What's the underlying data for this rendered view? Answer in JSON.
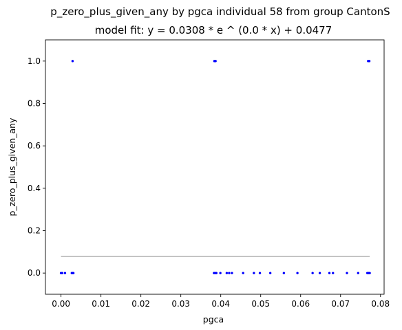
{
  "chart_data": {
    "type": "scatter",
    "title": "p_zero_plus_given_any by pgca individual 58 from group CantonS",
    "subtitle": "model fit: y = 0.0308 * e ^ (0.0 * x) + 0.0477",
    "xlabel": "pgca",
    "ylabel": "p_zero_plus_given_any",
    "xlim": [
      -0.0039,
      0.0809
    ],
    "ylim": [
      -0.1,
      1.1
    ],
    "x_ticks": [
      0.0,
      0.01,
      0.02,
      0.03,
      0.04,
      0.05,
      0.06,
      0.07,
      0.08
    ],
    "x_tick_labels": [
      "0.00",
      "0.01",
      "0.02",
      "0.03",
      "0.04",
      "0.05",
      "0.06",
      "0.07",
      "0.08"
    ],
    "y_ticks": [
      0.0,
      0.2,
      0.4,
      0.6,
      0.8,
      1.0
    ],
    "y_tick_labels": [
      "0.0",
      "0.2",
      "0.4",
      "0.6",
      "0.8",
      "1.0"
    ],
    "grid": false,
    "series": [
      {
        "marker_color": "#0000ff",
        "points": [
          {
            "x": 0.0,
            "y": 0.0
          },
          {
            "x": 0.0003,
            "y": 0.0
          },
          {
            "x": 0.001,
            "y": 0.0
          },
          {
            "x": 0.0027,
            "y": 0.0
          },
          {
            "x": 0.0029,
            "y": 0.0
          },
          {
            "x": 0.0031,
            "y": 0.0
          },
          {
            "x": 0.0029,
            "y": 1.0
          },
          {
            "x": 0.0383,
            "y": 0.0
          },
          {
            "x": 0.0386,
            "y": 0.0
          },
          {
            "x": 0.0389,
            "y": 0.0
          },
          {
            "x": 0.0399,
            "y": 0.0
          },
          {
            "x": 0.0415,
            "y": 0.0
          },
          {
            "x": 0.0421,
            "y": 0.0
          },
          {
            "x": 0.0428,
            "y": 0.0
          },
          {
            "x": 0.0456,
            "y": 0.0
          },
          {
            "x": 0.0483,
            "y": 0.0
          },
          {
            "x": 0.0498,
            "y": 0.0
          },
          {
            "x": 0.0524,
            "y": 0.0
          },
          {
            "x": 0.0558,
            "y": 0.0
          },
          {
            "x": 0.0592,
            "y": 0.0
          },
          {
            "x": 0.063,
            "y": 0.0
          },
          {
            "x": 0.0648,
            "y": 0.0
          },
          {
            "x": 0.0672,
            "y": 0.0
          },
          {
            "x": 0.0681,
            "y": 0.0
          },
          {
            "x": 0.0716,
            "y": 0.0
          },
          {
            "x": 0.0744,
            "y": 0.0
          },
          {
            "x": 0.0767,
            "y": 0.0
          },
          {
            "x": 0.077,
            "y": 0.0
          },
          {
            "x": 0.0773,
            "y": 0.0
          },
          {
            "x": 0.0384,
            "y": 1.0
          },
          {
            "x": 0.0387,
            "y": 1.0
          },
          {
            "x": 0.0769,
            "y": 1.0
          },
          {
            "x": 0.0772,
            "y": 1.0
          }
        ]
      }
    ],
    "fit_line": {
      "color": "#b0b0b0",
      "x_range": [
        0.0,
        0.0773
      ],
      "y": 0.0785
    }
  }
}
